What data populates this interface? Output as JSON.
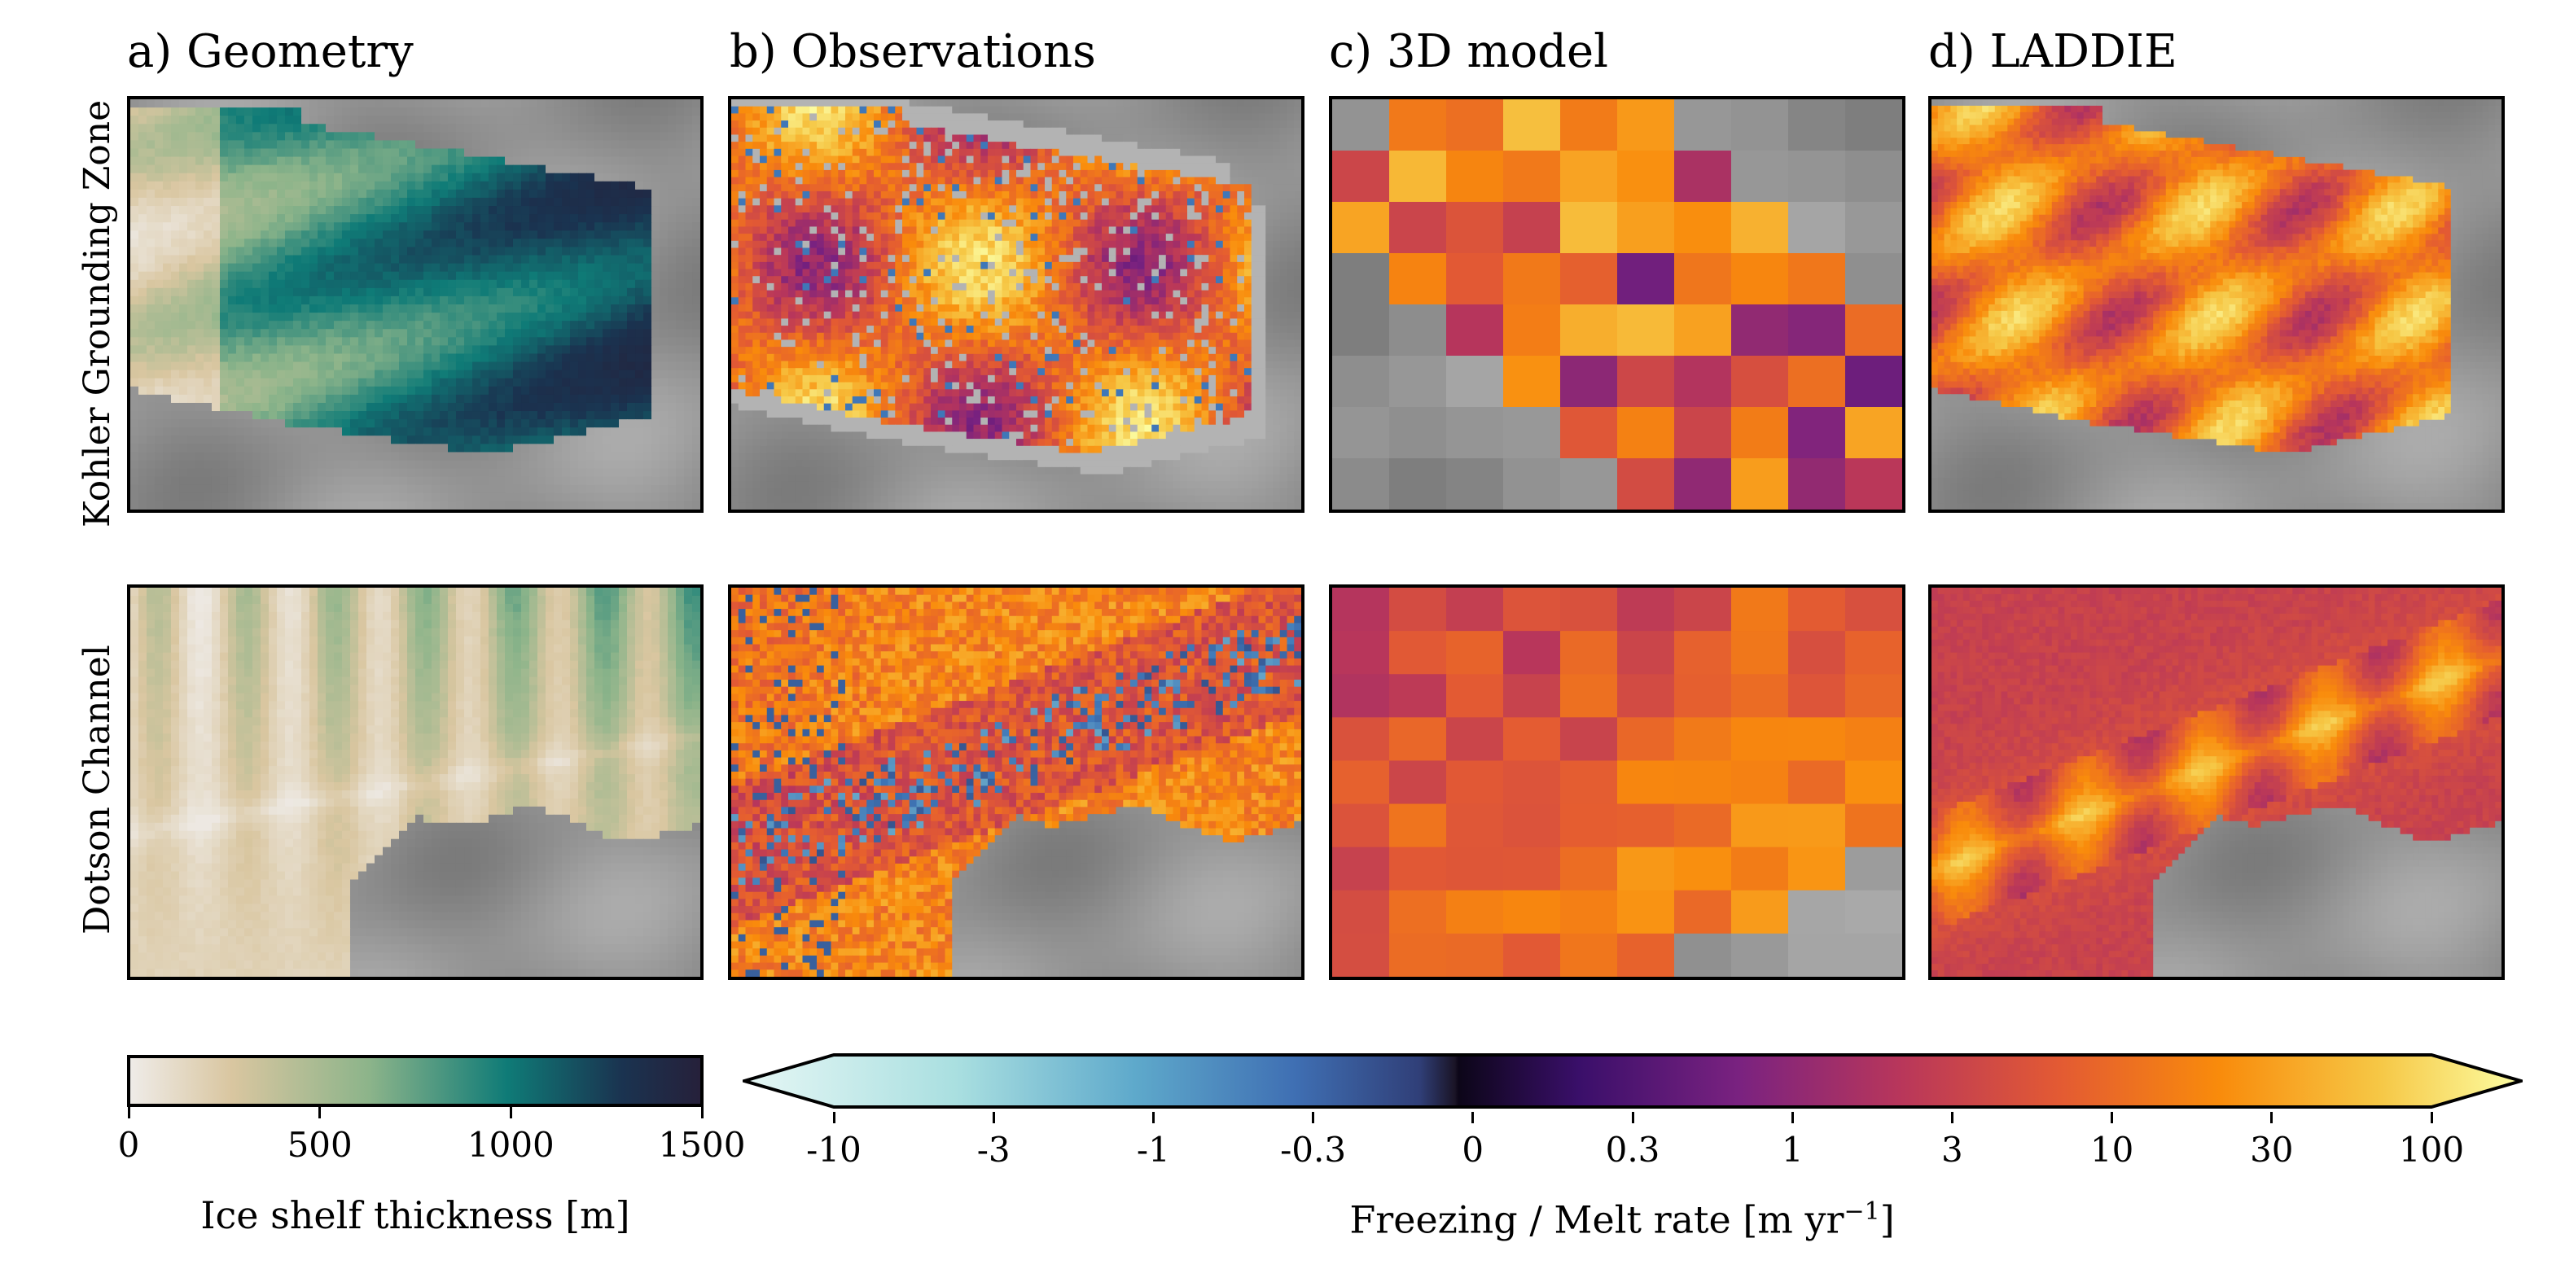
{
  "panel_titles": [
    "a) Geometry",
    "b) Observations",
    "c) 3D model",
    "d) LADDIE"
  ],
  "row_labels": [
    "Kohler Grounding Zone",
    "Dotson Channel"
  ],
  "colors": {
    "grounded": "#8a8a8a",
    "obs_mask": "#b3b3b3",
    "thickness_cmap": [
      "#efece9",
      "#d9c6a0",
      "#8cb48a",
      "#0f7b77",
      "#1a3350",
      "#26203a"
    ],
    "melt_cmap_neg": [
      "#e6f7f5",
      "#7fc4d2",
      "#3f77b8",
      "#2f3d74",
      "#1a1426"
    ],
    "melt_cmap_pos": [
      "#0c0618",
      "#40106e",
      "#7a2280",
      "#b8365b",
      "#e35a33",
      "#f98b0b",
      "#f6c745",
      "#fcfea4"
    ]
  },
  "chart_data": [
    {
      "type": "heatmap",
      "title": "a) Geometry",
      "variable": "Ice shelf thickness [m]",
      "colorbar": {
        "label": "Ice shelf thickness [m]",
        "ticks": [
          "0",
          "500",
          "1000",
          "1500"
        ],
        "range": [
          0,
          1500
        ]
      }
    },
    {
      "type": "heatmap",
      "title": "b) Observations",
      "variable": "Freezing / Melt rate [m yr−1]"
    },
    {
      "type": "heatmap",
      "title": "c) 3D model",
      "variable": "Freezing / Melt rate [m yr−1]"
    },
    {
      "type": "heatmap",
      "title": "d) LADDIE",
      "variable": "Freezing / Melt rate [m yr−1]",
      "colorbar": {
        "label_main": "Freezing / Melt rate [m yr",
        "label_sup": "−1",
        "label_end": "]",
        "ticks": [
          "-10",
          "-3",
          "-1",
          "-0.3",
          "0",
          "0.3",
          "1",
          "3",
          "10",
          "30",
          "100"
        ],
        "scale": "symmetric log",
        "range": [
          -10,
          100
        ],
        "extend": "both"
      }
    }
  ]
}
